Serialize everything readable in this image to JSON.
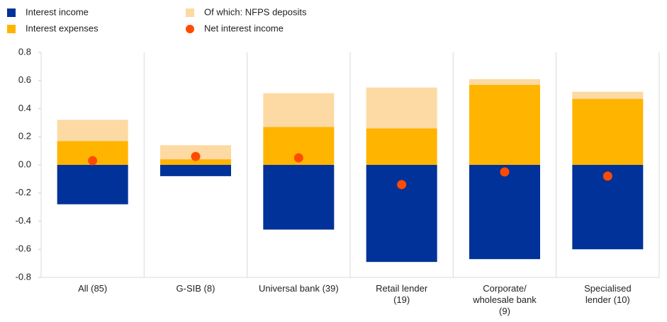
{
  "chart_data": {
    "type": "bar",
    "categories": [
      "All (85)",
      "G-SIB (8)",
      "Universal bank (39)",
      "Retail lender (19)",
      "Corporate/ wholesale bank (9)",
      "Specialised lender (10)"
    ],
    "series": [
      {
        "name": "Interest income",
        "color": "#003299",
        "mark": "bar",
        "values": [
          -0.28,
          -0.08,
          -0.46,
          -0.69,
          -0.67,
          -0.6
        ]
      },
      {
        "name": "Interest expenses",
        "color": "#ffb400",
        "mark": "bar",
        "values": [
          0.17,
          0.04,
          0.27,
          0.26,
          0.57,
          0.47
        ]
      },
      {
        "name": "Of which: NFPS deposits",
        "color": "#fdd9a3",
        "mark": "bar",
        "values": [
          0.15,
          0.1,
          0.24,
          0.29,
          0.04,
          0.05
        ]
      },
      {
        "name": "Net interest income",
        "color": "#ff4b00",
        "mark": "dot",
        "values": [
          0.03,
          0.06,
          0.05,
          -0.14,
          -0.05,
          -0.08
        ]
      }
    ],
    "ylim": [
      -0.8,
      0.8
    ],
    "yticks": [
      0.8,
      0.6,
      0.4,
      0.2,
      {
        "value": 0,
        "label": "0.0"
      },
      -0.2,
      -0.4,
      -0.6,
      -0.8
    ]
  }
}
